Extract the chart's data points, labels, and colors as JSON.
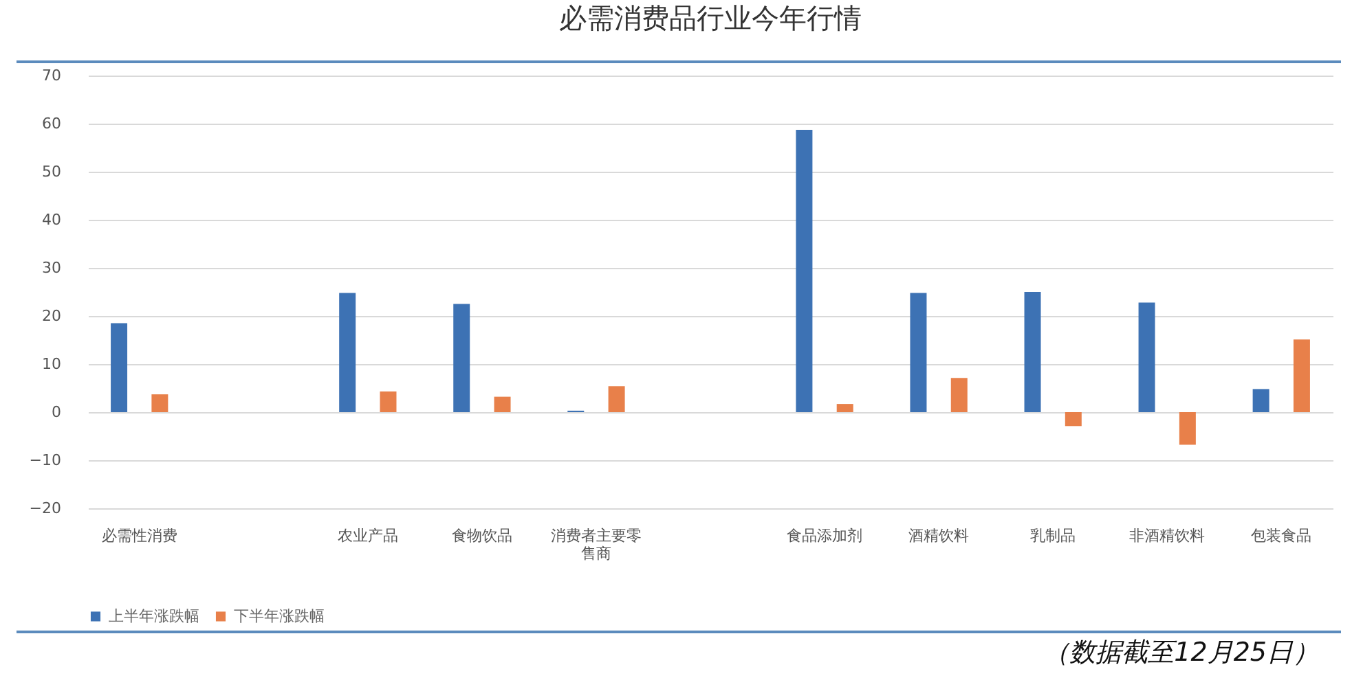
{
  "chart_data": {
    "type": "bar",
    "title": "必需消费品行业今年行情",
    "categories": [
      "必需性消费",
      null,
      "农业产品",
      "食物饮品",
      "消费者主要零售商",
      null,
      "食品添加剂",
      "酒精饮料",
      "乳制品",
      "非酒精饮料",
      "包装食品"
    ],
    "series": [
      {
        "name": "上半年涨跌幅",
        "color": "#3d72b4",
        "values": [
          18.5,
          null,
          24.8,
          22.5,
          0.3,
          null,
          58.7,
          24.8,
          25,
          22.8,
          4.8
        ]
      },
      {
        "name": "下半年涨跌幅",
        "color": "#e8804a",
        "values": [
          3.7,
          null,
          4.3,
          3.2,
          5.4,
          null,
          1.7,
          7.1,
          -2.9,
          -6.8,
          15.1
        ]
      }
    ],
    "ylim": [
      -20,
      70
    ],
    "yticks": [
      -20,
      -10,
      0,
      10,
      20,
      30,
      40,
      50,
      60,
      70
    ],
    "grid": "y",
    "legend": "bottom",
    "annotations": [
      "（数据截至12月25日）"
    ]
  }
}
